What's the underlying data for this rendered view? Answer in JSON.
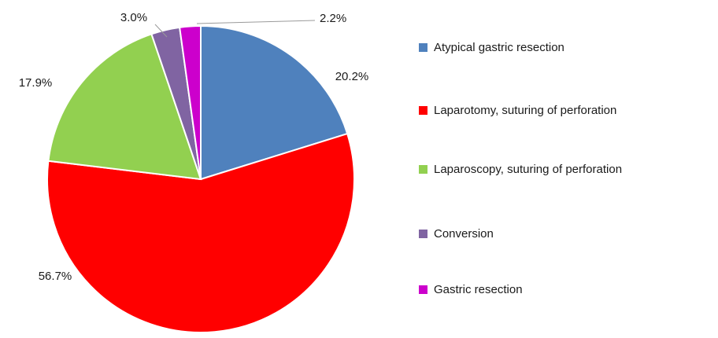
{
  "chart_data": {
    "type": "pie",
    "title": "",
    "legend_position": "right",
    "grid": false,
    "slices": [
      {
        "label": "Atypical gastric resection",
        "value": 20.2,
        "pct_label": "20.2%",
        "color": "#4F81BD"
      },
      {
        "label": "Laparotomy, suturing of perforation",
        "value": 56.7,
        "pct_label": "56.7%",
        "color": "#FF0000"
      },
      {
        "label": "Laparoscopy, suturing of perforation",
        "value": 17.9,
        "pct_label": "17.9%",
        "color": "#92D050"
      },
      {
        "label": "Conversion",
        "value": 3.0,
        "pct_label": "3.0%",
        "color": "#8064A2"
      },
      {
        "label": "Gastric resection",
        "value": 2.2,
        "pct_label": "2.2%",
        "color": "#CC00CC"
      }
    ]
  }
}
